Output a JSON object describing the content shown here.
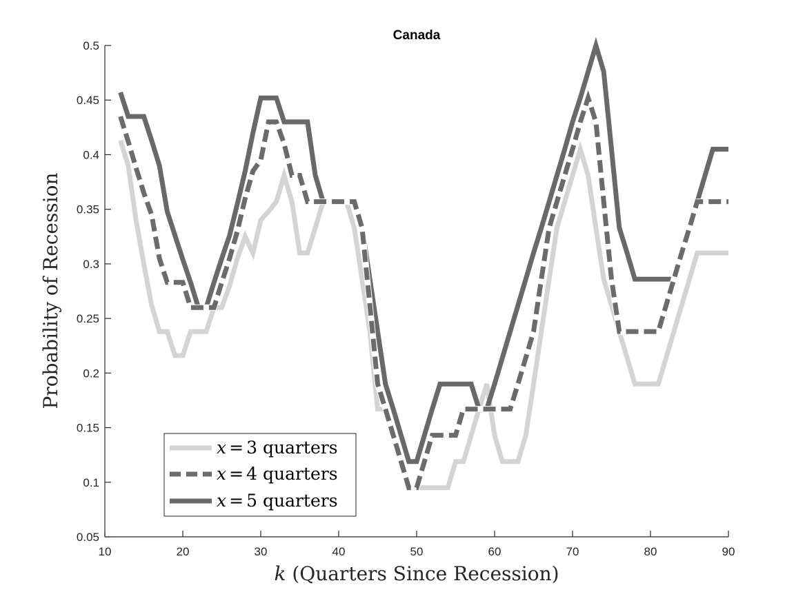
{
  "chart_data": {
    "type": "line",
    "title": "Canada",
    "xlabel": "k (Quarters Since Recession)",
    "ylabel": "Probability of Recession",
    "xlim": [
      10,
      90
    ],
    "ylim": [
      0.05,
      0.5
    ],
    "xticks": [
      10,
      20,
      30,
      40,
      50,
      60,
      70,
      80,
      90
    ],
    "yticks": [
      0.05,
      0.1,
      0.15,
      0.2,
      0.25,
      0.3,
      0.35,
      0.4,
      0.45,
      0.5
    ],
    "grid": false,
    "legend_position": "bottom-left",
    "series": [
      {
        "name": "x = 3 quarters",
        "color": "#d4d4d4",
        "style": "solid",
        "x": [
          12,
          13,
          14,
          15,
          16,
          17,
          18,
          19,
          20,
          21,
          22,
          23,
          24,
          25,
          26,
          27,
          28,
          29,
          30,
          31,
          32,
          33,
          34,
          35,
          36,
          37,
          38,
          39,
          40,
          41,
          42,
          43,
          44,
          45,
          46,
          47,
          48,
          49,
          50,
          51,
          52,
          53,
          54,
          55,
          56,
          57,
          58,
          59,
          60,
          61,
          62,
          63,
          64,
          65,
          66,
          67,
          68,
          69,
          70,
          71,
          72,
          73,
          74,
          75,
          76,
          77,
          78,
          79,
          80,
          81,
          82,
          83,
          84,
          85,
          86,
          87,
          88,
          89,
          90
        ],
        "values": [
          0.413,
          0.39,
          0.34,
          0.3,
          0.262,
          0.238,
          0.238,
          0.216,
          0.216,
          0.238,
          0.238,
          0.238,
          0.26,
          0.26,
          0.28,
          0.305,
          0.325,
          0.31,
          0.34,
          0.348,
          0.357,
          0.381,
          0.357,
          0.31,
          0.31,
          0.333,
          0.357,
          0.357,
          0.357,
          0.357,
          0.333,
          0.286,
          0.238,
          0.167,
          0.167,
          0.143,
          0.119,
          0.095,
          0.095,
          0.095,
          0.095,
          0.095,
          0.095,
          0.119,
          0.119,
          0.143,
          0.167,
          0.19,
          0.143,
          0.119,
          0.119,
          0.119,
          0.143,
          0.19,
          0.238,
          0.286,
          0.333,
          0.357,
          0.381,
          0.405,
          0.381,
          0.333,
          0.286,
          0.262,
          0.238,
          0.214,
          0.19,
          0.19,
          0.19,
          0.19,
          0.214,
          0.238,
          0.262,
          0.286,
          0.31,
          0.31,
          0.31,
          0.31,
          0.31
        ]
      },
      {
        "name": "x = 4 quarters",
        "color": "#6b6b6b",
        "style": "dashed",
        "x": [
          12,
          13,
          14,
          15,
          16,
          17,
          18,
          19,
          20,
          21,
          22,
          23,
          24,
          25,
          26,
          27,
          28,
          29,
          30,
          31,
          32,
          33,
          34,
          35,
          36,
          37,
          38,
          39,
          40,
          41,
          42,
          43,
          44,
          45,
          46,
          47,
          48,
          49,
          50,
          51,
          52,
          53,
          54,
          55,
          56,
          57,
          58,
          59,
          60,
          61,
          62,
          63,
          64,
          65,
          66,
          67,
          68,
          69,
          70,
          71,
          72,
          73,
          74,
          75,
          76,
          77,
          78,
          79,
          80,
          81,
          82,
          83,
          84,
          85,
          86,
          87,
          88,
          89,
          90
        ],
        "values": [
          0.435,
          0.412,
          0.388,
          0.365,
          0.345,
          0.305,
          0.283,
          0.283,
          0.283,
          0.26,
          0.26,
          0.26,
          0.26,
          0.283,
          0.305,
          0.33,
          0.36,
          0.385,
          0.395,
          0.43,
          0.43,
          0.41,
          0.381,
          0.381,
          0.357,
          0.357,
          0.357,
          0.357,
          0.357,
          0.357,
          0.357,
          0.333,
          0.262,
          0.19,
          0.167,
          0.143,
          0.119,
          0.095,
          0.095,
          0.119,
          0.143,
          0.143,
          0.143,
          0.143,
          0.167,
          0.167,
          0.167,
          0.167,
          0.167,
          0.167,
          0.167,
          0.19,
          0.214,
          0.238,
          0.286,
          0.333,
          0.357,
          0.381,
          0.405,
          0.43,
          0.452,
          0.43,
          0.357,
          0.286,
          0.238,
          0.238,
          0.238,
          0.238,
          0.238,
          0.238,
          0.262,
          0.286,
          0.31,
          0.333,
          0.357,
          0.357,
          0.357,
          0.357,
          0.357
        ]
      },
      {
        "name": "x = 5 quarters",
        "color": "#696969",
        "style": "solid",
        "x": [
          12,
          13,
          14,
          15,
          16,
          17,
          18,
          19,
          20,
          21,
          22,
          23,
          24,
          25,
          26,
          27,
          28,
          29,
          30,
          31,
          32,
          33,
          34,
          35,
          36,
          37,
          38,
          39,
          40,
          41,
          42,
          43,
          44,
          45,
          46,
          47,
          48,
          49,
          50,
          51,
          52,
          53,
          54,
          55,
          56,
          57,
          58,
          59,
          60,
          61,
          62,
          63,
          64,
          65,
          66,
          67,
          68,
          69,
          70,
          71,
          72,
          73,
          74,
          75,
          76,
          77,
          78,
          79,
          80,
          81,
          82,
          83,
          84,
          85,
          86,
          87,
          88,
          89,
          90
        ],
        "values": [
          0.457,
          0.435,
          0.435,
          0.435,
          0.413,
          0.39,
          0.348,
          0.326,
          0.304,
          0.283,
          0.26,
          0.26,
          0.283,
          0.305,
          0.326,
          0.355,
          0.385,
          0.42,
          0.452,
          0.452,
          0.452,
          0.43,
          0.43,
          0.43,
          0.43,
          0.381,
          0.357,
          0.357,
          0.357,
          0.357,
          0.357,
          0.333,
          0.286,
          0.238,
          0.19,
          0.167,
          0.143,
          0.119,
          0.119,
          0.143,
          0.167,
          0.19,
          0.19,
          0.19,
          0.19,
          0.19,
          0.167,
          0.167,
          0.19,
          0.214,
          0.238,
          0.262,
          0.286,
          0.31,
          0.333,
          0.357,
          0.381,
          0.405,
          0.43,
          0.452,
          0.476,
          0.5,
          0.476,
          0.405,
          0.333,
          0.31,
          0.286,
          0.286,
          0.286,
          0.286,
          0.286,
          0.286,
          0.31,
          0.333,
          0.357,
          0.381,
          0.405,
          0.405,
          0.405
        ]
      }
    ]
  },
  "legend": {
    "items": [
      {
        "var": "x",
        "eq": "=",
        "num": "3",
        "word": "quarters"
      },
      {
        "var": "x",
        "eq": "=",
        "num": "4",
        "word": "quarters"
      },
      {
        "var": "x",
        "eq": "=",
        "num": "5",
        "word": "quarters"
      }
    ]
  },
  "axis_text": {
    "x_var": "k",
    "x_rest": "(Quarters Since Recession)",
    "y_label": "Probability of Recession"
  }
}
